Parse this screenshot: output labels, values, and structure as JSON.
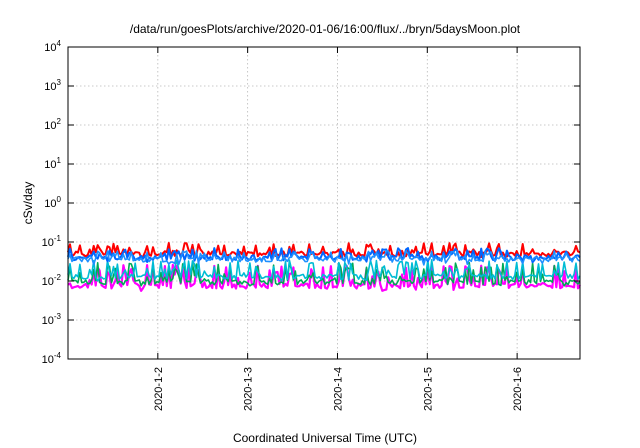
{
  "chart_data": {
    "type": "line",
    "title": "/data/run/goesPlots/archive/2020-01-06/16:00/flux/../bryn/5daysMoon.plot",
    "xlabel": "Coordinated Universal Time (UTC)",
    "ylabel": "cSv/day",
    "y_scale": "log",
    "ylim": [
      0.0001,
      10000
    ],
    "xlim_days": [
      1.0,
      6.7
    ],
    "grid": true,
    "y_ticks": [
      {
        "value": 0.0001,
        "base": "10",
        "exp": "-4"
      },
      {
        "value": 0.001,
        "base": "10",
        "exp": "-3"
      },
      {
        "value": 0.01,
        "base": "10",
        "exp": "-2"
      },
      {
        "value": 0.1,
        "base": "10",
        "exp": "-1"
      },
      {
        "value": 1,
        "base": "10",
        "exp": "0"
      },
      {
        "value": 10,
        "base": "10",
        "exp": "1"
      },
      {
        "value": 100,
        "base": "10",
        "exp": "2"
      },
      {
        "value": 1000,
        "base": "10",
        "exp": "3"
      },
      {
        "value": 10000,
        "base": "10",
        "exp": "4"
      }
    ],
    "x_ticks": [
      {
        "day": 2,
        "label": "2020-1-2"
      },
      {
        "day": 3,
        "label": "2020-1-3"
      },
      {
        "day": 4,
        "label": "2020-1-4"
      },
      {
        "day": 5,
        "label": "2020-1-5"
      },
      {
        "day": 6,
        "label": "2020-1-6"
      }
    ],
    "series": [
      {
        "color": "#ff00ff",
        "base": 0.0075,
        "low": 0.0055,
        "high": 0.026,
        "width": 2.2
      },
      {
        "color": "#00aa55",
        "base": 0.0095,
        "low": 0.0075,
        "high": 0.03,
        "width": 1.6
      },
      {
        "color": "#00bcd4",
        "base": 0.013,
        "low": 0.01,
        "high": 0.035,
        "width": 1.6
      },
      {
        "color": "#ff0000",
        "base": 0.05,
        "low": 0.04,
        "high": 0.095,
        "width": 2.0
      },
      {
        "color": "#0066ff",
        "base": 0.04,
        "low": 0.03,
        "high": 0.07,
        "width": 2.0
      },
      {
        "color": "#1e90ff",
        "base": 0.036,
        "low": 0.025,
        "high": 0.06,
        "width": 1.6
      }
    ]
  }
}
